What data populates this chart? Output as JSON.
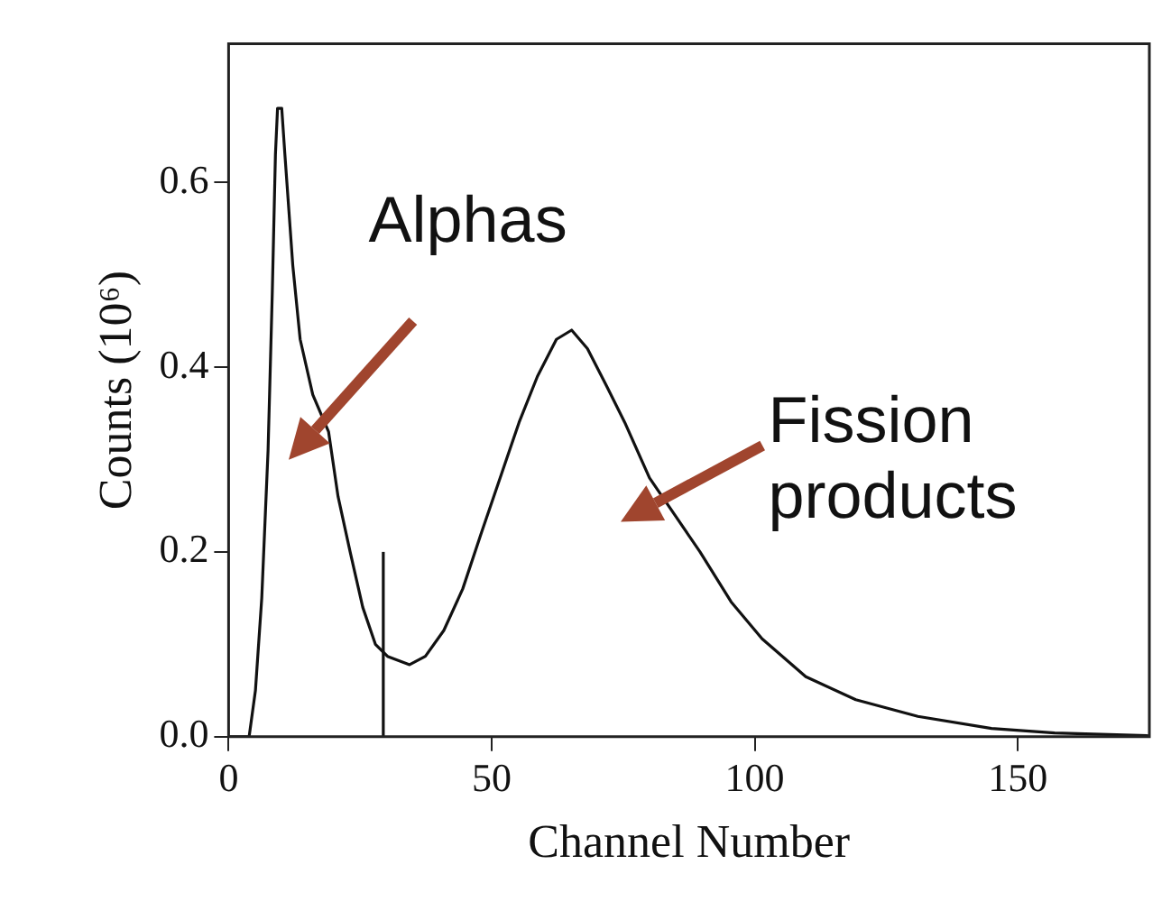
{
  "chart_data": {
    "type": "line",
    "xlabel": "Channel Number",
    "ylabel": "Counts (10⁶)",
    "xlim": [
      0,
      175
    ],
    "xticks": [
      0,
      50,
      100,
      150
    ],
    "ylim": [
      0,
      0.75
    ],
    "yticks": [
      {
        "value": 0,
        "label": "0.0"
      },
      {
        "value": 0.2,
        "label": "0.2"
      },
      {
        "value": 0.4,
        "label": "0.4"
      },
      {
        "value": 0.6,
        "label": "0.6"
      }
    ],
    "grid": false,
    "legend": false,
    "marker": "none",
    "line_style": "solid",
    "series": [
      {
        "color": "#111111",
        "x": [
          0,
          3.9,
          5.1,
          6.3,
          7.5,
          8.3,
          8.9,
          9.3,
          10.1,
          10.7,
          12.2,
          13.6,
          16,
          19,
          20.8,
          23.1,
          25.5,
          27.9,
          30.2,
          34.4,
          37.4,
          40.9,
          44.5,
          48,
          51.6,
          55.2,
          58.7,
          62.3,
          65.2,
          68.2,
          71.8,
          75.3,
          80,
          84.8,
          89.6,
          95.5,
          101.4,
          109.7,
          119.2,
          131,
          145,
          157,
          175
        ],
        "values": [
          0,
          0,
          0.05,
          0.15,
          0.31,
          0.48,
          0.63,
          0.68,
          0.68,
          0.63,
          0.51,
          0.43,
          0.37,
          0.33,
          0.26,
          0.2,
          0.14,
          0.1,
          0.087,
          0.078,
          0.087,
          0.115,
          0.16,
          0.22,
          0.28,
          0.34,
          0.39,
          0.43,
          0.44,
          0.42,
          0.38,
          0.34,
          0.28,
          0.24,
          0.2,
          0.146,
          0.106,
          0.065,
          0.04,
          0.022,
          0.009,
          0.004,
          0.001
        ]
      },
      {
        "color": "#111111",
        "x": [
          29.4,
          29.4
        ],
        "values": [
          0,
          0.2
        ]
      }
    ],
    "annotations": [
      "Alphas",
      "Fission products"
    ]
  }
}
